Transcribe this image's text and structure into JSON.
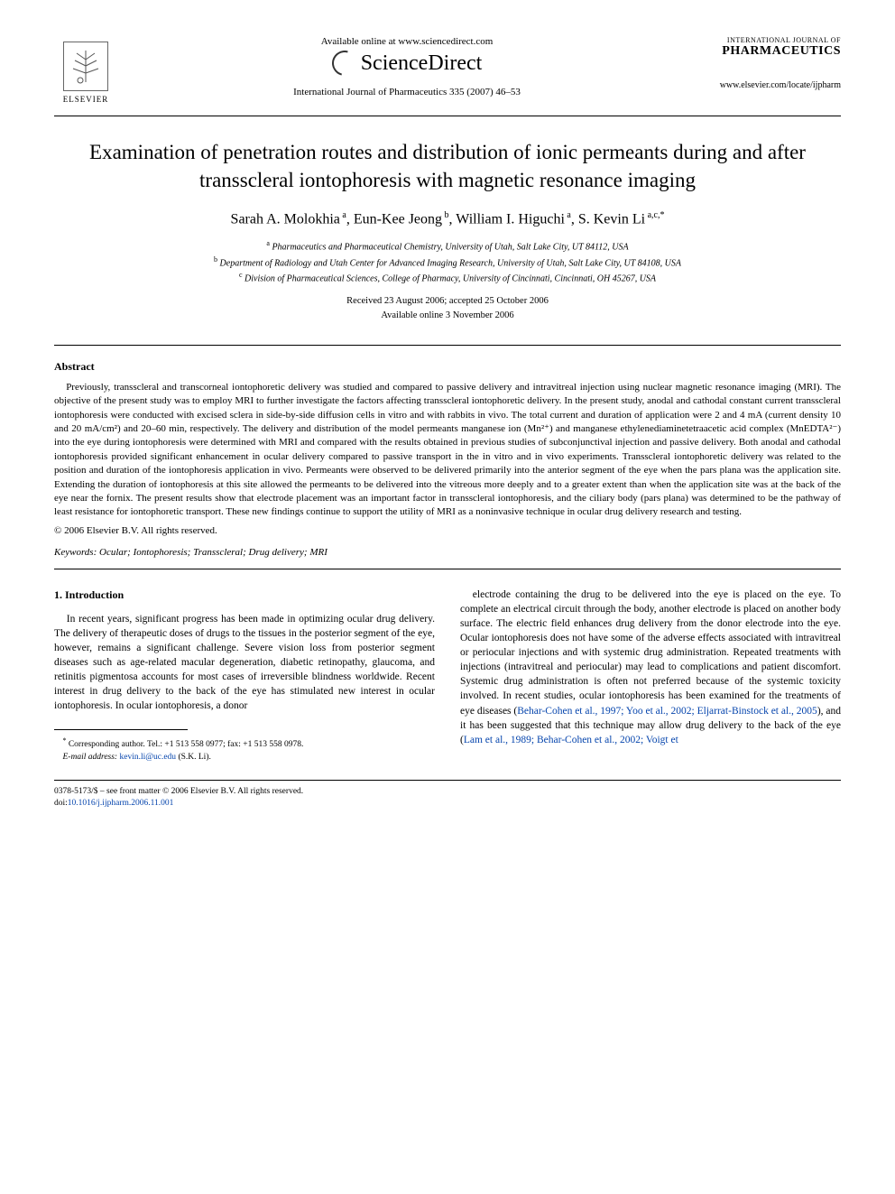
{
  "header": {
    "elsevier_label": "ELSEVIER",
    "available_online": "Available online at www.sciencedirect.com",
    "sd_brand": "ScienceDirect",
    "journal_ref": "International Journal of Pharmaceutics 335 (2007) 46–53",
    "journal_small": "INTERNATIONAL JOURNAL OF",
    "journal_large": "PHARMACEUTICS",
    "journal_url": "www.elsevier.com/locate/ijpharm"
  },
  "title": "Examination of penetration routes and distribution of ionic permeants during and after transscleral iontophoresis with magnetic resonance imaging",
  "authors_html": "Sarah A. Molokhia<sup> a</sup>, Eun-Kee Jeong<sup> b</sup>, William I. Higuchi<sup> a</sup>, S. Kevin Li<sup> a,c,*</sup>",
  "affiliations": {
    "a": "Pharmaceutics and Pharmaceutical Chemistry, University of Utah, Salt Lake City, UT 84112, USA",
    "b": "Department of Radiology and Utah Center for Advanced Imaging Research, University of Utah, Salt Lake City, UT 84108, USA",
    "c": "Division of Pharmaceutical Sciences, College of Pharmacy, University of Cincinnati, Cincinnati, OH 45267, USA"
  },
  "dates": {
    "received_accepted": "Received 23 August 2006; accepted 25 October 2006",
    "online": "Available online 3 November 2006"
  },
  "abstract": {
    "heading": "Abstract",
    "body": "Previously, transscleral and transcorneal iontophoretic delivery was studied and compared to passive delivery and intravitreal injection using nuclear magnetic resonance imaging (MRI). The objective of the present study was to employ MRI to further investigate the factors affecting transscleral iontophoretic delivery. In the present study, anodal and cathodal constant current transscleral iontophoresis were conducted with excised sclera in side-by-side diffusion cells in vitro and with rabbits in vivo. The total current and duration of application were 2 and 4 mA (current density 10 and 20 mA/cm²) and 20–60 min, respectively. The delivery and distribution of the model permeants manganese ion (Mn²⁺) and manganese ethylenediaminetetraacetic acid complex (MnEDTA²⁻) into the eye during iontophoresis were determined with MRI and compared with the results obtained in previous studies of subconjunctival injection and passive delivery. Both anodal and cathodal iontophoresis provided significant enhancement in ocular delivery compared to passive transport in the in vitro and in vivo experiments. Transscleral iontophoretic delivery was related to the position and duration of the iontophoresis application in vivo. Permeants were observed to be delivered primarily into the anterior segment of the eye when the pars plana was the application site. Extending the duration of iontophoresis at this site allowed the permeants to be delivered into the vitreous more deeply and to a greater extent than when the application site was at the back of the eye near the fornix. The present results show that electrode placement was an important factor in transscleral iontophoresis, and the ciliary body (pars plana) was determined to be the pathway of least resistance for iontophoretic transport. These new findings continue to support the utility of MRI as a noninvasive technique in ocular drug delivery research and testing.",
    "copyright": "© 2006 Elsevier B.V. All rights reserved."
  },
  "keywords": {
    "label": "Keywords:",
    "list": "Ocular; Iontophoresis; Transscleral; Drug delivery; MRI"
  },
  "section1": {
    "heading": "1.  Introduction",
    "col1": "In recent years, significant progress has been made in optimizing ocular drug delivery. The delivery of therapeutic doses of drugs to the tissues in the posterior segment of the eye, however, remains a significant challenge. Severe vision loss from posterior segment diseases such as age-related macular degeneration, diabetic retinopathy, glaucoma, and retinitis pigmentosa accounts for most cases of irreversible blindness worldwide. Recent interest in drug delivery to the back of the eye has stimulated new interest in ocular iontophoresis. In ocular iontophoresis, a donor",
    "col2_part1": "electrode containing the drug to be delivered into the eye is placed on the eye. To complete an electrical circuit through the body, another electrode is placed on another body surface. The electric field enhances drug delivery from the donor electrode into the eye. Ocular iontophoresis does not have some of the adverse effects associated with intravitreal or periocular injections and with systemic drug administration. Repeated treatments with injections (intravitreal and periocular) may lead to complications and patient discomfort. Systemic drug administration is often not preferred because of the systemic toxicity involved. In recent studies, ocular iontophoresis has been examined for the treatments of eye diseases (",
    "col2_link1": "Behar-Cohen et al., 1997; Yoo et al., 2002; Eljarrat-Binstock et al., 2005",
    "col2_part2": "), and it has been suggested that this technique may allow drug delivery to the back of the eye (",
    "col2_link2": "Lam et al., 1989; Behar-Cohen et al., 2002; Voigt et"
  },
  "footnote": {
    "corr": "Corresponding author. Tel.: +1 513 558 0977; fax: +1 513 558 0978.",
    "email_label": "E-mail address:",
    "email": "kevin.li@uc.edu",
    "email_paren": "(S.K. Li)."
  },
  "footer": {
    "line1": "0378-5173/$ – see front matter © 2006 Elsevier B.V. All rights reserved.",
    "doi_prefix": "doi:",
    "doi": "10.1016/j.ijpharm.2006.11.001"
  },
  "colors": {
    "text": "#000000",
    "link": "#0645ad",
    "background": "#ffffff"
  }
}
